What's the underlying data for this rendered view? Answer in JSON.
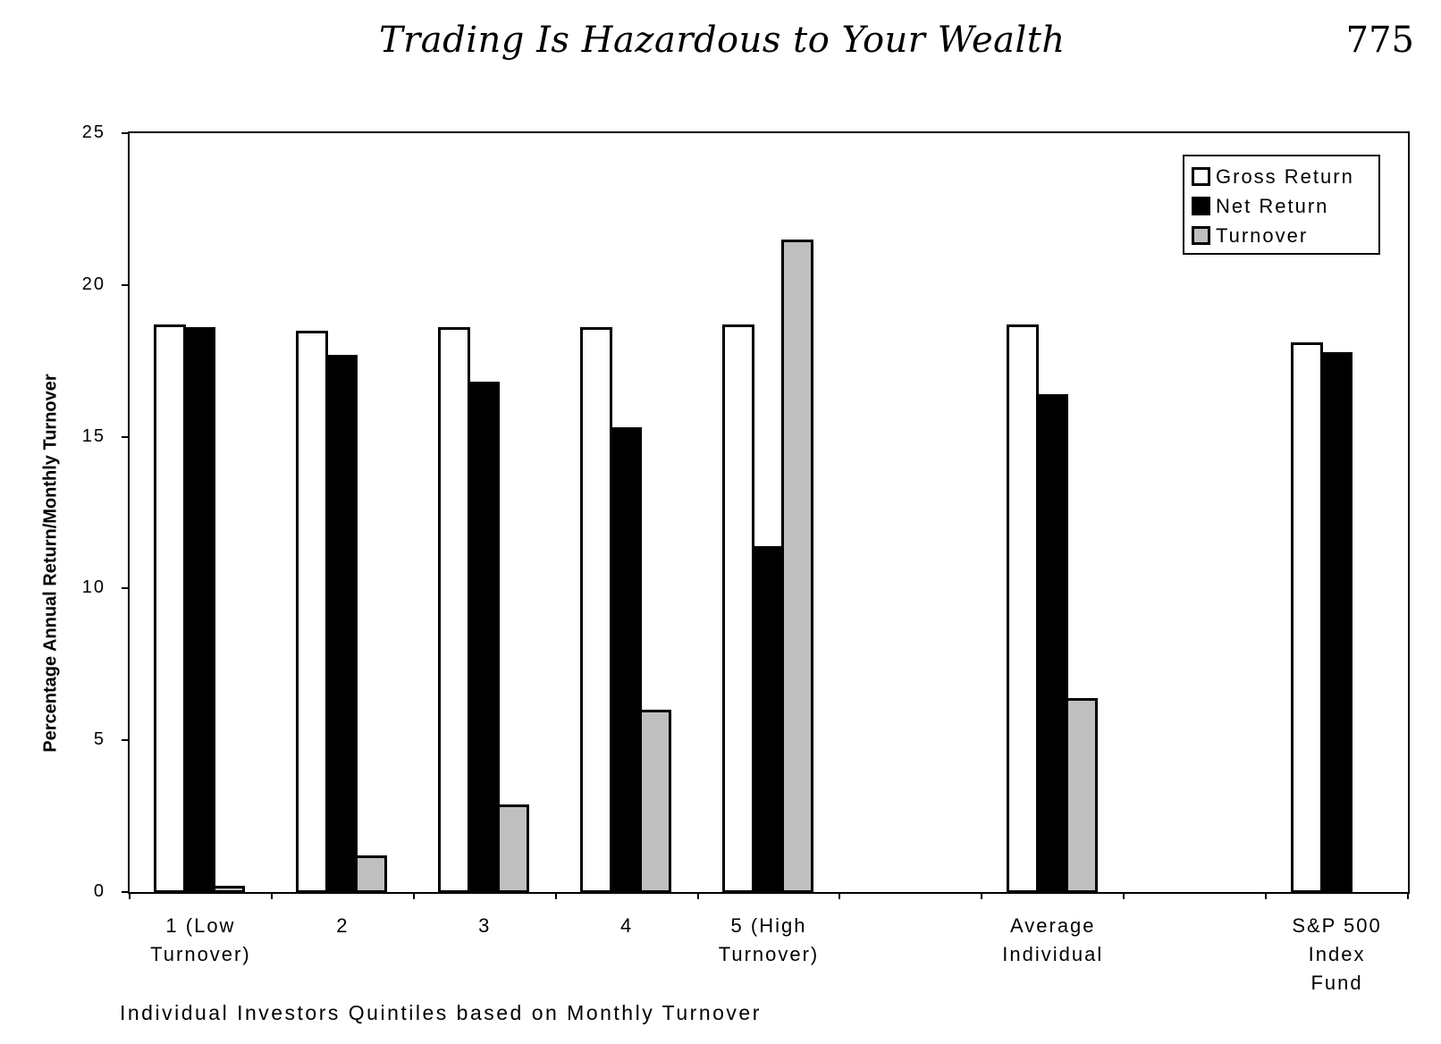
{
  "page": {
    "running_title": "Trading Is Hazardous to Your Wealth",
    "page_number": "775"
  },
  "chart_data": {
    "type": "bar",
    "title": "",
    "xlabel": "Individual Investors Quintiles based on Monthly Turnover",
    "ylabel": "Percentage Annual Return/Monthly Turnover",
    "ylim": [
      0,
      25
    ],
    "yticks": [
      "0",
      "5",
      "10",
      "15",
      "20",
      "25"
    ],
    "grid": false,
    "legend_position": "top-right",
    "categories": [
      "1 (Low\nTurnover)",
      "2",
      "3",
      "4",
      "5 (High\nTurnover)",
      "",
      "Average\nIndividual",
      "",
      "S&P 500\nIndex\nFund"
    ],
    "series": [
      {
        "name": "Gross Return",
        "color": "#ffffff",
        "values": [
          18.7,
          18.5,
          18.6,
          18.6,
          18.7,
          null,
          18.7,
          null,
          18.1
        ]
      },
      {
        "name": "Net Return",
        "color": "#000000",
        "values": [
          18.6,
          17.7,
          16.8,
          15.3,
          11.4,
          null,
          16.4,
          null,
          17.8
        ]
      },
      {
        "name": "Turnover",
        "color": "#bfbfbf",
        "values": [
          0.2,
          1.2,
          2.9,
          6.0,
          21.5,
          null,
          6.4,
          null,
          null
        ]
      }
    ]
  },
  "legend": {
    "items": [
      {
        "label": "Gross Return",
        "color": "#ffffff"
      },
      {
        "label": "Net Return",
        "color": "#000000"
      },
      {
        "label": "Turnover",
        "color": "#bfbfbf"
      }
    ]
  }
}
